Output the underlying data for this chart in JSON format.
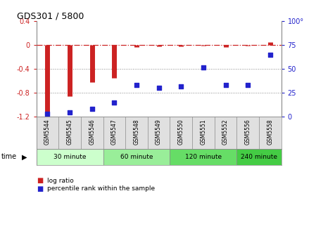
{
  "title": "GDS301 / 5800",
  "samples": [
    "GSM5544",
    "GSM5545",
    "GSM5546",
    "GSM5547",
    "GSM5548",
    "GSM5549",
    "GSM5550",
    "GSM5551",
    "GSM5552",
    "GSM5556",
    "GSM5558"
  ],
  "log_ratio": [
    -1.15,
    -0.85,
    -0.62,
    -0.55,
    -0.03,
    -0.02,
    -0.02,
    -0.01,
    -0.03,
    -0.01,
    0.05
  ],
  "percentile": [
    3,
    5,
    8,
    15,
    33,
    30,
    32,
    52,
    33,
    33,
    65
  ],
  "time_groups": [
    {
      "label": "30 minute",
      "start": 0,
      "end": 3,
      "color": "#ccffcc"
    },
    {
      "label": "60 minute",
      "start": 3,
      "end": 6,
      "color": "#99ee99"
    },
    {
      "label": "120 minute",
      "start": 6,
      "end": 9,
      "color": "#66dd66"
    },
    {
      "label": "240 minute",
      "start": 9,
      "end": 11,
      "color": "#44cc44"
    }
  ],
  "ylim_left": [
    -1.2,
    0.4
  ],
  "ylim_right": [
    0,
    100
  ],
  "yticks_left": [
    -1.2,
    -0.8,
    -0.4,
    0.0,
    0.4
  ],
  "yticks_right": [
    0,
    25,
    50,
    75,
    100
  ],
  "ytick_labels_right": [
    "0",
    "25",
    "50",
    "75",
    "100°"
  ],
  "bar_color": "#cc2222",
  "scatter_color": "#2222cc",
  "ref_line_color": "#cc2222",
  "grid_color": "#888888",
  "sample_bg": "#e0e0e0",
  "bg_color": "#ffffff"
}
